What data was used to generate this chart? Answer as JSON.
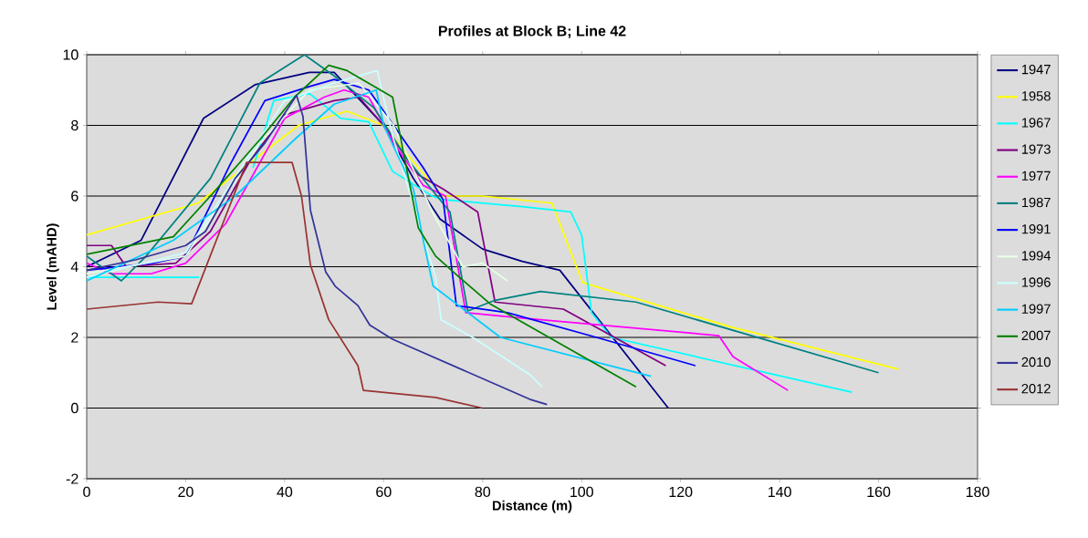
{
  "chart_data": {
    "type": "line",
    "title": "Profiles at Block B; Line 42",
    "xlabel": "Distance (m)",
    "ylabel": "Level (mAHD)",
    "xlim": [
      0,
      180
    ],
    "xticks": [
      0,
      20,
      40,
      60,
      80,
      100,
      120,
      140,
      160,
      180
    ],
    "ylim": [
      -2,
      10
    ],
    "yticks": [
      -2,
      0,
      2,
      4,
      6,
      8,
      10
    ],
    "grid": "y",
    "legend": "right",
    "marker": "none",
    "line_style": "solid",
    "series": [
      {
        "name": "1947",
        "color": "#000080",
        "x": [
          0,
          11,
          23.6,
          34,
          45,
          50,
          60,
          66,
          71.4,
          80,
          88,
          95.6,
          117.5
        ],
        "values": [
          4.0,
          4.75,
          8.2,
          9.15,
          9.5,
          9.5,
          8.0,
          6.5,
          5.35,
          4.5,
          4.15,
          3.9,
          0
        ]
      },
      {
        "name": "1958",
        "color": "#ffff00",
        "x": [
          0,
          22.5,
          42.8,
          52.6,
          60,
          67,
          72,
          80,
          94,
          100.2,
          130,
          164
        ],
        "values": [
          4.9,
          5.8,
          8.0,
          8.4,
          8.0,
          6.8,
          6.0,
          6.0,
          5.8,
          3.55,
          2.3,
          1.1
        ]
      },
      {
        "name": "1967",
        "color": "#00ffff",
        "x": [
          0,
          22.7,
          28,
          33.6,
          37.8,
          45,
          51.3,
          57,
          61.8,
          69.8,
          72,
          88,
          97.8,
          100,
          102,
          106,
          154.6
        ],
        "values": [
          3.7,
          3.7,
          null,
          6.8,
          8.7,
          8.9,
          8.2,
          8.1,
          6.7,
          6.0,
          5.9,
          5.7,
          5.55,
          4.9,
          2.7,
          2.0,
          0.45
        ]
      },
      {
        "name": "1973",
        "color": "#800080",
        "x": [
          0,
          5,
          8,
          18,
          25,
          33,
          40,
          50,
          55,
          60,
          67,
          72,
          79,
          82.5,
          96.3,
          117
        ],
        "values": [
          4.6,
          4.6,
          4.0,
          4.1,
          5.0,
          7.0,
          8.3,
          8.7,
          8.8,
          8.0,
          6.6,
          6.2,
          5.55,
          3.0,
          2.8,
          1.2
        ]
      },
      {
        "name": "1977",
        "color": "#ff00ff",
        "x": [
          0,
          5,
          13,
          20,
          28,
          40,
          48,
          52,
          57,
          62,
          68,
          72.5,
          76.6,
          87.6,
          127.7,
          130.6,
          141.7
        ],
        "values": [
          4.1,
          3.8,
          3.8,
          4.1,
          5.2,
          8.2,
          8.8,
          9.0,
          8.8,
          7.5,
          6.3,
          6.0,
          2.7,
          2.55,
          2.05,
          1.45,
          0.5
        ]
      },
      {
        "name": "1987",
        "color": "#008080",
        "x": [
          0,
          7,
          12,
          25,
          35,
          44,
          50,
          58,
          65,
          73.4,
          77,
          82.5,
          91.7,
          111,
          160
        ],
        "values": [
          4.3,
          3.6,
          4.3,
          6.5,
          9.2,
          10.0,
          9.4,
          8.5,
          7.0,
          5.55,
          2.75,
          3.05,
          3.3,
          3.0,
          1.0
        ]
      },
      {
        "name": "1991",
        "color": "#0000ff",
        "x": [
          0,
          13.3,
          20,
          29,
          36,
          45,
          50,
          57,
          62,
          68,
          72,
          74.7,
          85,
          103,
          123
        ],
        "values": [
          3.9,
          4.1,
          4.3,
          6.9,
          8.7,
          9.1,
          9.3,
          9.0,
          8.0,
          6.8,
          5.9,
          2.9,
          2.7,
          2.0,
          1.2
        ]
      },
      {
        "name": "1994",
        "color": "#e6ffe6",
        "x": [
          0,
          20,
          35,
          45,
          55,
          62,
          70,
          76,
          80,
          85
        ],
        "values": [
          3.8,
          4.3,
          7.5,
          9.0,
          9.2,
          8.0,
          5.5,
          4.0,
          4.1,
          3.6
        ]
      },
      {
        "name": "1996",
        "color": "#ccffff",
        "x": [
          0,
          20,
          40,
          50,
          58.7,
          61.8,
          70.5,
          71.6,
          78,
          89.5,
          92
        ],
        "values": [
          3.7,
          4.4,
          8.7,
          9.2,
          9.55,
          7.7,
          3.7,
          2.5,
          2.0,
          0.95,
          0.6
        ]
      },
      {
        "name": "1997",
        "color": "#00ccff",
        "x": [
          0,
          17.5,
          30,
          42,
          50,
          58.5,
          60,
          66,
          68,
          70,
          83.6,
          114
        ],
        "values": [
          3.6,
          4.75,
          6.0,
          7.6,
          8.6,
          9.0,
          8.0,
          6.2,
          4.75,
          3.45,
          2.0,
          0.9
        ]
      },
      {
        "name": "2007",
        "color": "#008000",
        "x": [
          0,
          17.5,
          25,
          35,
          42,
          48.9,
          52.6,
          61.8,
          67,
          70.5,
          75.3,
          81.5,
          111
        ],
        "values": [
          4.35,
          4.85,
          6.0,
          7.6,
          8.8,
          9.7,
          9.55,
          8.8,
          5.1,
          4.3,
          3.7,
          2.95,
          0.6
        ]
      },
      {
        "name": "2010",
        "color": "#333399",
        "x": [
          0,
          10,
          20,
          24,
          30,
          36,
          42.4,
          43.7,
          45.2,
          48.3,
          50.2,
          54.8,
          57.2,
          61.8,
          89.5,
          93
        ],
        "values": [
          3.9,
          4.2,
          4.6,
          5.0,
          6.5,
          7.5,
          8.85,
          8.25,
          5.6,
          3.85,
          3.45,
          2.9,
          2.35,
          1.95,
          0.25,
          0.1
        ]
      },
      {
        "name": "2012",
        "color": "#993333",
        "x": [
          0,
          14.4,
          21.2,
          32.3,
          41.5,
          43.4,
          45.2,
          48.9,
          54.8,
          55.9,
          70.5,
          79.9
        ],
        "values": [
          2.8,
          3.0,
          2.95,
          6.95,
          6.95,
          6.0,
          4.05,
          2.5,
          1.2,
          0.5,
          0.3,
          0
        ]
      }
    ]
  }
}
